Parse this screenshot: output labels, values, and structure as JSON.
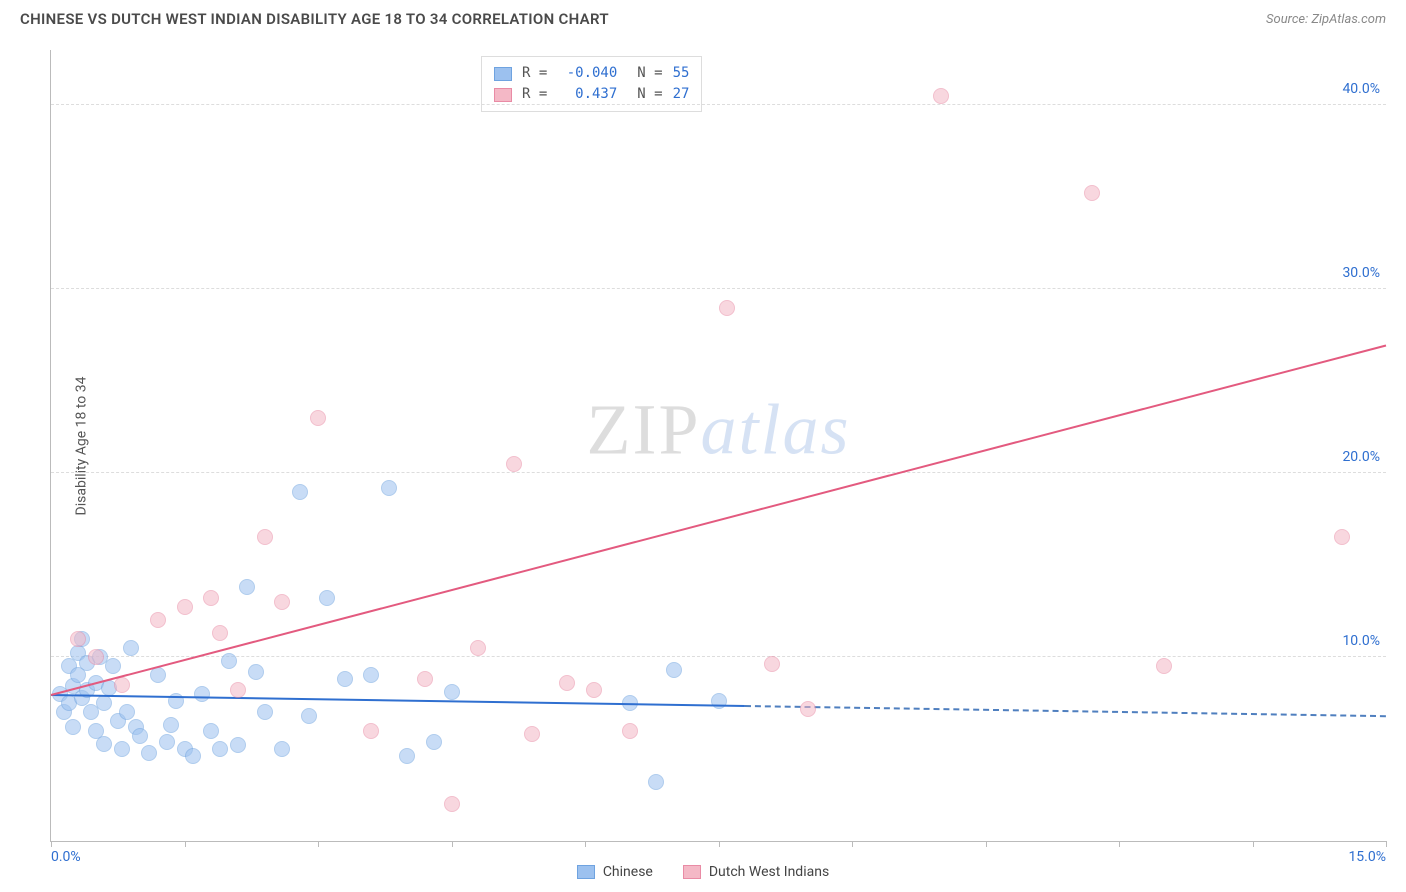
{
  "header": {
    "title": "CHINESE VS DUTCH WEST INDIAN DISABILITY AGE 18 TO 34 CORRELATION CHART",
    "source_prefix": "Source: ",
    "source": "ZipAtlas.com"
  },
  "watermark": {
    "part1": "ZIP",
    "part2": "atlas"
  },
  "chart": {
    "type": "scatter-with-trendlines",
    "ylabel": "Disability Age 18 to 34",
    "xlim": [
      0,
      15
    ],
    "ylim": [
      0,
      43
    ],
    "y_ticks": [
      10,
      20,
      30,
      40
    ],
    "y_tick_labels": [
      "10.0%",
      "20.0%",
      "30.0%",
      "40.0%"
    ],
    "x_tick_labels": {
      "left": "0.0%",
      "right": "15.0%"
    },
    "x_tick_marks": [
      0,
      1.5,
      3,
      4.5,
      6,
      7.5,
      9,
      10.5,
      12,
      13.5,
      15
    ],
    "background_color": "#ffffff",
    "grid_color": "#dddddd",
    "axis_color": "#bbbbbb",
    "tick_label_color": "#2f6fd0",
    "marker_radius": 8,
    "marker_opacity": 0.55,
    "series": [
      {
        "name": "Chinese",
        "label": "Chinese",
        "color_fill": "#9cc1ef",
        "color_stroke": "#6fa3e0",
        "R": "-0.040",
        "N": "55",
        "trend": {
          "x1": 0,
          "y1": 8.0,
          "x2": 7.8,
          "y2": 7.4,
          "solid_color": "#2f6fd0",
          "dash_to_x": 15,
          "dash_color": "#4f7fbf"
        },
        "points": [
          [
            0.1,
            8.0
          ],
          [
            0.15,
            7.0
          ],
          [
            0.2,
            9.5
          ],
          [
            0.2,
            7.5
          ],
          [
            0.25,
            6.2
          ],
          [
            0.25,
            8.4
          ],
          [
            0.3,
            10.2
          ],
          [
            0.3,
            9.0
          ],
          [
            0.35,
            11.0
          ],
          [
            0.35,
            7.8
          ],
          [
            0.4,
            8.2
          ],
          [
            0.4,
            9.7
          ],
          [
            0.45,
            7.0
          ],
          [
            0.5,
            6.0
          ],
          [
            0.5,
            8.6
          ],
          [
            0.55,
            10.0
          ],
          [
            0.6,
            5.3
          ],
          [
            0.6,
            7.5
          ],
          [
            0.65,
            8.3
          ],
          [
            0.7,
            9.5
          ],
          [
            0.75,
            6.5
          ],
          [
            0.8,
            5.0
          ],
          [
            0.85,
            7.0
          ],
          [
            0.9,
            10.5
          ],
          [
            0.95,
            6.2
          ],
          [
            1.0,
            5.7
          ],
          [
            1.1,
            4.8
          ],
          [
            1.2,
            9.0
          ],
          [
            1.3,
            5.4
          ],
          [
            1.35,
            6.3
          ],
          [
            1.4,
            7.6
          ],
          [
            1.5,
            5.0
          ],
          [
            1.6,
            4.6
          ],
          [
            1.7,
            8.0
          ],
          [
            1.8,
            6.0
          ],
          [
            1.9,
            5.0
          ],
          [
            2.0,
            9.8
          ],
          [
            2.1,
            5.2
          ],
          [
            2.2,
            13.8
          ],
          [
            2.3,
            9.2
          ],
          [
            2.4,
            7.0
          ],
          [
            2.6,
            5.0
          ],
          [
            2.8,
            19.0
          ],
          [
            2.9,
            6.8
          ],
          [
            3.1,
            13.2
          ],
          [
            3.3,
            8.8
          ],
          [
            3.6,
            9.0
          ],
          [
            3.8,
            19.2
          ],
          [
            4.0,
            4.6
          ],
          [
            4.3,
            5.4
          ],
          [
            4.5,
            8.1
          ],
          [
            6.5,
            7.5
          ],
          [
            6.8,
            3.2
          ],
          [
            7.0,
            9.3
          ],
          [
            7.5,
            7.6
          ]
        ]
      },
      {
        "name": "Dutch West Indians",
        "label": "Dutch West Indians",
        "color_fill": "#f4b8c6",
        "color_stroke": "#e98ba5",
        "R": "0.437",
        "N": "27",
        "trend": {
          "x1": 0,
          "y1": 8.0,
          "x2": 15,
          "y2": 27.0,
          "solid_color": "#e35a7f",
          "dash_to_x": null,
          "dash_color": null
        },
        "points": [
          [
            0.3,
            11.0
          ],
          [
            0.5,
            10.0
          ],
          [
            0.8,
            8.5
          ],
          [
            1.2,
            12.0
          ],
          [
            1.5,
            12.7
          ],
          [
            1.8,
            13.2
          ],
          [
            1.9,
            11.3
          ],
          [
            2.1,
            8.2
          ],
          [
            2.4,
            16.5
          ],
          [
            2.6,
            13.0
          ],
          [
            3.0,
            23.0
          ],
          [
            3.6,
            6.0
          ],
          [
            4.2,
            8.8
          ],
          [
            4.5,
            2.0
          ],
          [
            4.8,
            10.5
          ],
          [
            5.2,
            20.5
          ],
          [
            5.4,
            5.8
          ],
          [
            5.8,
            8.6
          ],
          [
            6.1,
            8.2
          ],
          [
            6.5,
            6.0
          ],
          [
            7.6,
            29.0
          ],
          [
            8.1,
            9.6
          ],
          [
            8.5,
            7.2
          ],
          [
            10.0,
            40.5
          ],
          [
            11.7,
            35.2
          ],
          [
            12.5,
            9.5
          ],
          [
            14.5,
            16.5
          ]
        ]
      }
    ]
  },
  "legend_top": {
    "rows": [
      {
        "series": 0
      },
      {
        "series": 1
      }
    ],
    "r_prefix": "R =",
    "n_prefix": "N ="
  },
  "legend_bottom": {
    "items": [
      {
        "series": 0
      },
      {
        "series": 1
      }
    ]
  }
}
